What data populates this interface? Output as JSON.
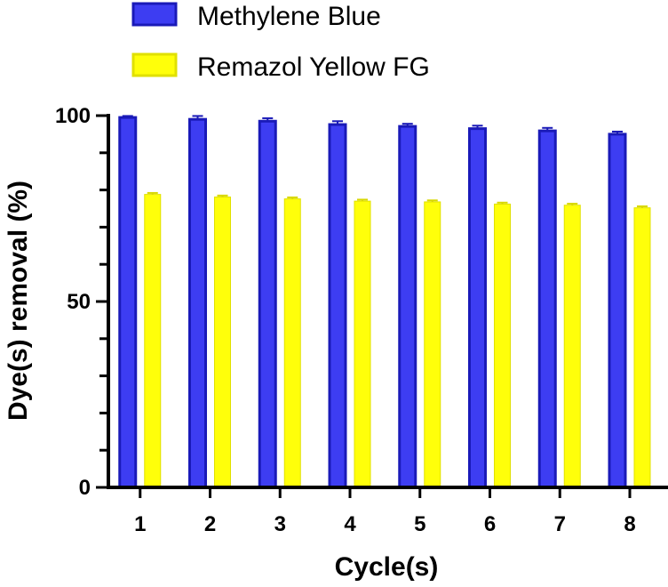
{
  "chart_data": {
    "type": "bar",
    "title": "",
    "xlabel": "Cycle(s)",
    "ylabel": "Dye(s) removal (%)",
    "ylim": [
      0,
      100
    ],
    "yticks": [
      0,
      50,
      100
    ],
    "categories": [
      "1",
      "2",
      "3",
      "4",
      "5",
      "6",
      "7",
      "8"
    ],
    "legend_position": "top-left",
    "grid": false,
    "series": [
      {
        "name": "Methylene Blue",
        "color": "#3d3df2",
        "edge_color": "#1a1ab8",
        "values": [
          99.5,
          99.0,
          98.5,
          97.6,
          97.1,
          96.5,
          95.9,
          95.0
        ],
        "errors": [
          0.4,
          0.9,
          0.8,
          0.9,
          0.7,
          0.8,
          0.8,
          0.7
        ]
      },
      {
        "name": "Remazol Yellow FG",
        "color": "#ffff0a",
        "edge_color": "#e0e000",
        "values": [
          78.8,
          78.1,
          77.6,
          77.0,
          76.8,
          76.2,
          75.9,
          75.2
        ],
        "errors": [
          0.4,
          0.4,
          0.4,
          0.4,
          0.4,
          0.4,
          0.4,
          0.4
        ]
      }
    ]
  }
}
